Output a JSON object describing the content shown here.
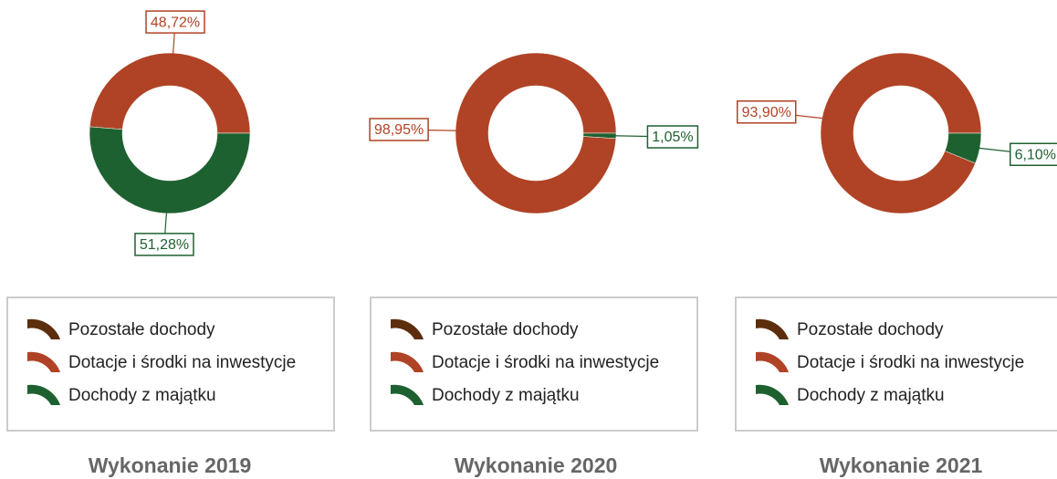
{
  "chart_data": [
    {
      "type": "pie",
      "title": "Wykonanie 2019",
      "categories": [
        "Pozostałe dochody",
        "Dotacje i środki na inwestycje",
        "Dochody z majątku"
      ],
      "values": [
        0,
        48.72,
        51.28
      ],
      "value_labels": [
        null,
        "48,72%",
        "51,28%"
      ],
      "colors": [
        "#5c2e0e",
        "#b04325",
        "#1e6130"
      ]
    },
    {
      "type": "pie",
      "title": "Wykonanie 2020",
      "categories": [
        "Pozostałe dochody",
        "Dotacje i środki na inwestycje",
        "Dochody z majątku"
      ],
      "values": [
        0,
        98.95,
        1.05
      ],
      "value_labels": [
        null,
        "98,95%",
        "1,05%"
      ],
      "colors": [
        "#5c2e0e",
        "#b04325",
        "#1e6130"
      ]
    },
    {
      "type": "pie",
      "title": "Wykonanie 2021",
      "categories": [
        "Pozostałe dochody",
        "Dotacje i środki na inwestycje",
        "Dochody z majątku"
      ],
      "values": [
        0,
        93.9,
        6.1
      ],
      "value_labels": [
        null,
        "93,90%",
        "6,10%"
      ],
      "colors": [
        "#5c2e0e",
        "#b04325",
        "#1e6130"
      ]
    }
  ]
}
